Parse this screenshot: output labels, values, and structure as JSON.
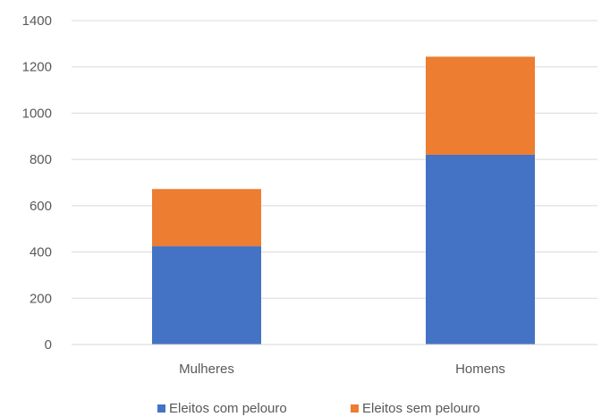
{
  "chart_data": {
    "type": "bar",
    "stacked": true,
    "categories": [
      "Mulheres",
      "Homens"
    ],
    "series": [
      {
        "name": "Eleitos com pelouro",
        "values": [
          425,
          820
        ],
        "color": "#4472C4"
      },
      {
        "name": "Eleitos sem pelouro",
        "values": [
          247,
          424
        ],
        "color": "#ED7D31"
      }
    ],
    "ylim": [
      0,
      1400
    ],
    "yticks": [
      0,
      200,
      400,
      600,
      800,
      1000,
      1200,
      1400
    ],
    "grid": true,
    "legend_position": "bottom",
    "title": "",
    "xlabel": "",
    "ylabel": ""
  }
}
